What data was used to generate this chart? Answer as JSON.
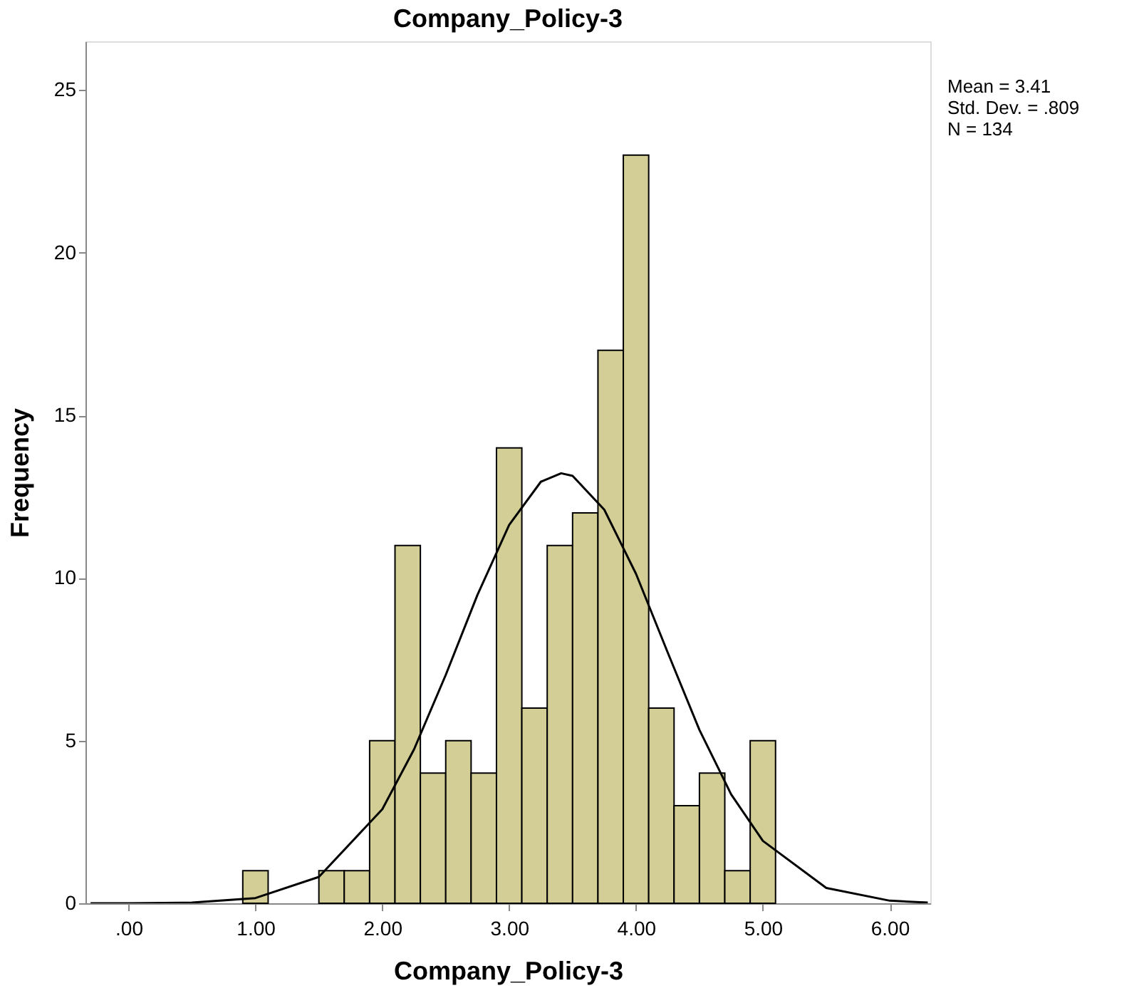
{
  "chart_data": {
    "type": "histogram",
    "title": "Company_Policy-3",
    "xlabel": "Company_Policy-3",
    "ylabel": "Frequency",
    "bins": [
      0.9,
      1.1,
      1.3,
      1.5,
      1.7,
      1.9,
      2.1,
      2.3,
      2.5,
      2.7,
      2.9,
      3.1,
      3.3,
      3.5,
      3.7,
      3.9,
      4.1,
      4.3,
      4.5,
      4.7,
      4.9,
      5.1
    ],
    "values": [
      1,
      0,
      0,
      1,
      1,
      5,
      11,
      4,
      5,
      4,
      14,
      6,
      11,
      12,
      17,
      23,
      6,
      3,
      4,
      1,
      5
    ],
    "color": "#d3ce96",
    "series": [
      {
        "type": "line",
        "color": "#000000",
        "x": [
          -0.3,
          0,
          0.5,
          1,
          1.5,
          2,
          2.25,
          2.5,
          2.75,
          3,
          3.25,
          3.41,
          3.5,
          3.75,
          4,
          4.25,
          4.5,
          4.75,
          5,
          5.5,
          6,
          6.3
        ],
        "values": [
          0.0,
          0.0,
          0.02,
          0.16,
          0.81,
          2.89,
          4.73,
          7.02,
          9.48,
          11.63,
          12.96,
          13.22,
          13.14,
          12.1,
          10.13,
          7.71,
          5.33,
          3.35,
          1.92,
          0.47,
          0.08,
          0.02
        ]
      }
    ],
    "xlim": [
      -0.34,
      6.32
    ],
    "ylim": [
      0,
      26.5
    ],
    "xticks": [
      {
        "value": 0,
        "label": ".00"
      },
      {
        "value": 1,
        "label": "1.00"
      },
      {
        "value": 2,
        "label": "2.00"
      },
      {
        "value": 3,
        "label": "3.00"
      },
      {
        "value": 4,
        "label": "4.00"
      },
      {
        "value": 5,
        "label": "5.00"
      },
      {
        "value": 6,
        "label": "6.00"
      }
    ],
    "yticks": [
      0,
      5,
      10,
      15,
      20,
      25
    ],
    "grid": false,
    "annotations": [
      "Mean = 3.41",
      "Std. Dev. = .809",
      "N = 134"
    ]
  }
}
